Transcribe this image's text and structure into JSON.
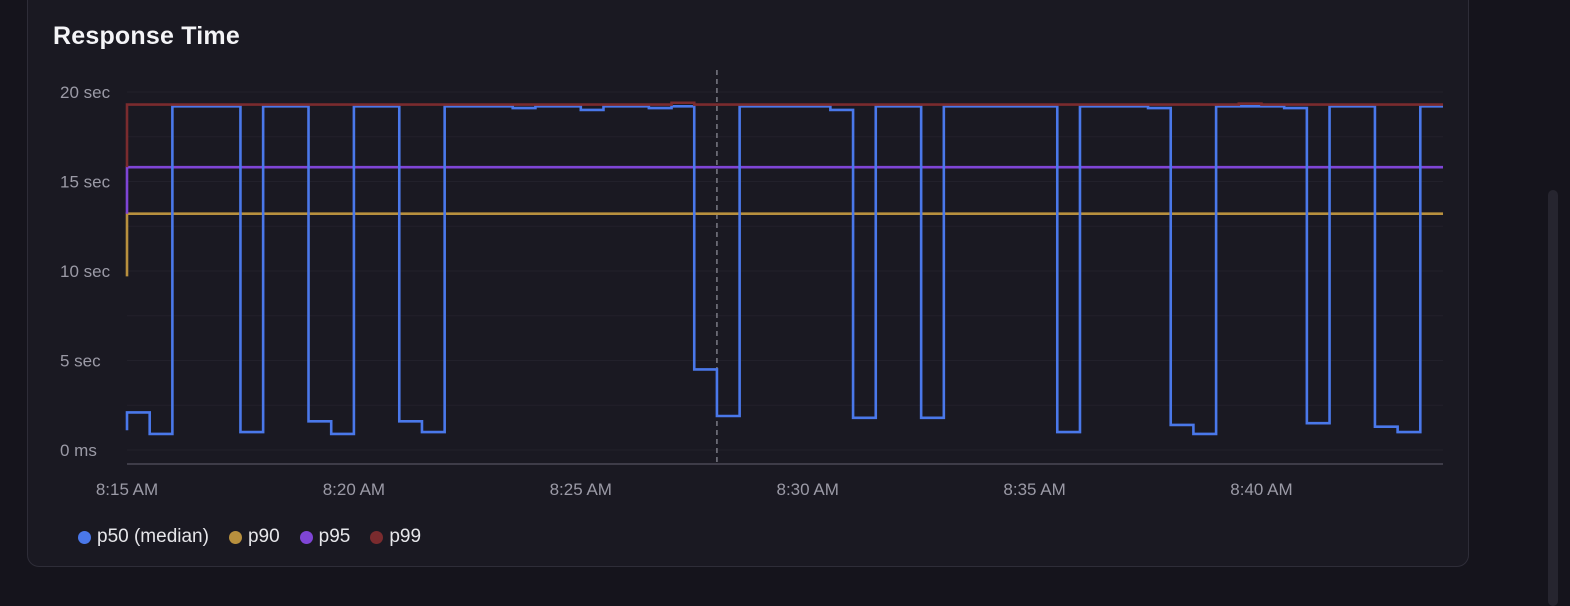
{
  "title": "Response Time",
  "chart_data": {
    "type": "line",
    "step": true,
    "title": "Response Time",
    "x_ticks": [
      "8:15 AM",
      "8:20 AM",
      "8:25 AM",
      "8:30 AM",
      "8:35 AM",
      "8:40 AM"
    ],
    "y_ticks": [
      "0 ms",
      "5 sec",
      "10 sec",
      "15 sec",
      "20 sec"
    ],
    "x_unit": "minutes after 8:15 AM",
    "xlim": [
      0,
      29
    ],
    "ylim": [
      0,
      20
    ],
    "y_unit": "sec",
    "grid": true,
    "legend_position": "bottom-left",
    "cursor_x": 13,
    "series": [
      {
        "name": "p50 (median)",
        "color": "#4a78ea",
        "points": [
          [
            0,
            1.1
          ],
          [
            0,
            2.1
          ],
          [
            0.5,
            0.9
          ],
          [
            1,
            19.2
          ],
          [
            2.5,
            1.0
          ],
          [
            3,
            19.2
          ],
          [
            4,
            1.6
          ],
          [
            4.5,
            0.9
          ],
          [
            5,
            19.2
          ],
          [
            6,
            1.6
          ],
          [
            6.5,
            1.0
          ],
          [
            7,
            19.2
          ],
          [
            8.5,
            19.1
          ],
          [
            9,
            19.2
          ],
          [
            10,
            19.0
          ],
          [
            10.5,
            19.2
          ],
          [
            11.5,
            19.1
          ],
          [
            12,
            19.2
          ],
          [
            12.5,
            4.5
          ],
          [
            13,
            1.9
          ],
          [
            13.5,
            19.2
          ],
          [
            15.5,
            19.0
          ],
          [
            16,
            1.8
          ],
          [
            16.5,
            19.2
          ],
          [
            17.5,
            1.8
          ],
          [
            18,
            19.2
          ],
          [
            20.5,
            1.0
          ],
          [
            21,
            19.2
          ],
          [
            22.5,
            19.1
          ],
          [
            23,
            1.4
          ],
          [
            23.5,
            0.9
          ],
          [
            24,
            19.2
          ],
          [
            25.5,
            19.1
          ],
          [
            26,
            1.5
          ],
          [
            26.5,
            19.2
          ],
          [
            27.5,
            1.3
          ],
          [
            28,
            1.0
          ],
          [
            28.5,
            19.2
          ],
          [
            29,
            19.2
          ]
        ]
      },
      {
        "name": "p90",
        "color": "#b8903e",
        "points": [
          [
            0,
            9.7
          ],
          [
            0,
            13.2
          ],
          [
            29,
            13.2
          ]
        ]
      },
      {
        "name": "p95",
        "color": "#7f45d6",
        "points": [
          [
            0,
            13.2
          ],
          [
            0,
            15.8
          ],
          [
            29,
            15.8
          ]
        ]
      },
      {
        "name": "p99",
        "color": "#7a2b2e",
        "points": [
          [
            0,
            15.8
          ],
          [
            0,
            19.3
          ],
          [
            12,
            19.3
          ],
          [
            12,
            19.4
          ],
          [
            12.5,
            19.4
          ],
          [
            12.5,
            19.3
          ],
          [
            24.5,
            19.3
          ],
          [
            24.5,
            19.35
          ],
          [
            25,
            19.35
          ],
          [
            25,
            19.3
          ],
          [
            29,
            19.3
          ]
        ]
      }
    ]
  }
}
